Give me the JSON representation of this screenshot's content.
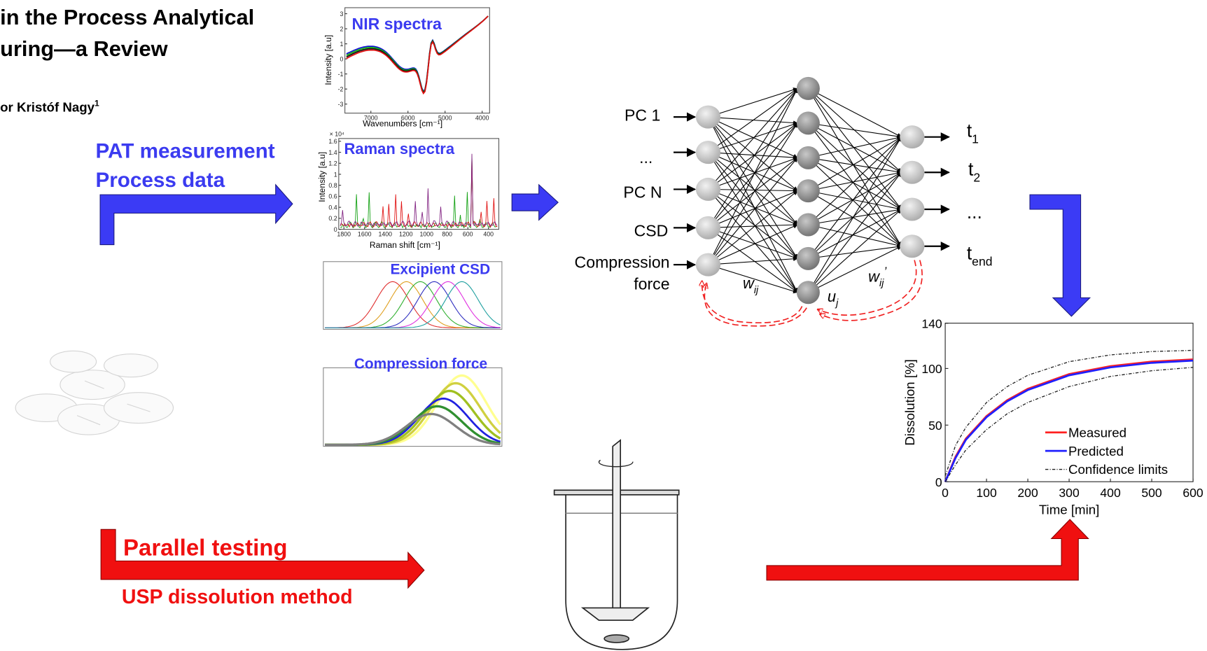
{
  "header": {
    "title_line1": "in the Process Analytical",
    "title_line2": "uring—a Review",
    "author": "or Kristóf Nagy",
    "author_sup": "1"
  },
  "labels": {
    "pat": [
      "PAT measurement",
      "Process data"
    ],
    "parallel": "Parallel testing",
    "usp": "USP dissolution method"
  },
  "panels": {
    "nir": {
      "title": "NIR spectra",
      "ylabel": "Intensity [a.u]",
      "xlabel": "Wavenumbers [cm⁻¹]",
      "xlim": [
        7700,
        3800
      ],
      "xticks": [
        7000,
        6000,
        5000,
        4000
      ],
      "ylim": [
        -3.6,
        3.4
      ],
      "yticks": [
        3,
        2,
        1,
        0,
        -1,
        -2,
        -3
      ]
    },
    "raman": {
      "title": "Raman spectra",
      "exponent": "× 10⁴",
      "ylabel": "Intensity [a.u]",
      "xlabel": "Raman shift [cm⁻¹]",
      "xlim": [
        1850,
        300
      ],
      "xticks": [
        1800,
        1600,
        1400,
        1200,
        1000,
        800,
        600,
        400
      ],
      "ylim": [
        0,
        1.65
      ],
      "yticks": [
        0,
        0.2,
        0.4,
        0.6,
        0.8,
        1,
        1.2,
        1.4,
        1.6
      ]
    },
    "csd": {
      "title": "Excipient CSD"
    },
    "compression": {
      "title": "Compression force"
    }
  },
  "network": {
    "inputs": [
      "PC 1",
      "...",
      "PC N",
      "CSD",
      "Compression",
      "force"
    ],
    "outputs": [
      {
        "base": "t",
        "sub": "1"
      },
      {
        "base": "t",
        "sub": "2"
      },
      {
        "base": "..."
      },
      {
        "base": "t",
        "sub": "end"
      }
    ],
    "w_in": {
      "base": "w",
      "sub": "ij"
    },
    "u": {
      "base": "u",
      "sub": "j"
    },
    "w_out": {
      "base": "w",
      "sub": "ij",
      "sup": "’"
    }
  },
  "dissolution": {
    "ylabel": "Dissolution [%]",
    "xlabel": "Time [min]",
    "xlim": [
      0,
      600
    ],
    "xticks": [
      0,
      100,
      200,
      300,
      400,
      500,
      600
    ],
    "ylim": [
      0,
      140
    ],
    "yticks": [
      0,
      50,
      100,
      140
    ],
    "x": [
      0,
      25,
      50,
      100,
      150,
      200,
      300,
      400,
      500,
      600
    ],
    "series": [
      {
        "name": "Measured",
        "color": "#ff2020",
        "values": [
          0,
          22,
          38,
          58,
          72,
          82,
          95,
          102,
          106,
          108
        ]
      },
      {
        "name": "Predicted",
        "color": "#2020ff",
        "values": [
          0,
          21,
          37,
          57,
          71,
          81,
          94,
          101,
          105,
          107
        ]
      },
      {
        "name": "Confidence limits",
        "color": "#222222",
        "values": [
          5,
          32,
          48,
          70,
          84,
          94,
          106,
          112,
          115,
          116
        ],
        "lower_values": [
          0,
          15,
          28,
          46,
          60,
          70,
          84,
          93,
          98,
          101
        ]
      }
    ]
  }
}
